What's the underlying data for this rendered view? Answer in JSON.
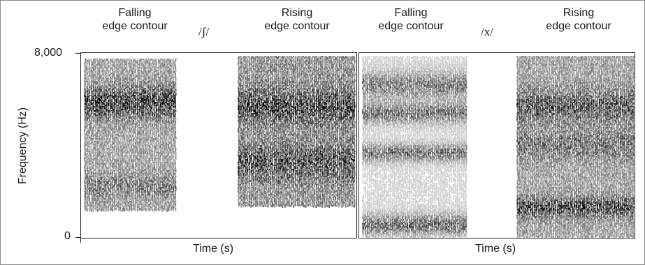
{
  "figure": {
    "y_axis_label": "Frequency (Hz)",
    "y_ticks": [
      "8,000",
      "0"
    ],
    "x_axis_label": "Time (s)",
    "panels": [
      {
        "phoneme": "/ʃ/",
        "left_label": "Falling\nedge contour",
        "right_label": "Rising\nedge contour"
      },
      {
        "phoneme": "/x/",
        "left_label": "Falling\nedge contour",
        "right_label": "Rising\nedge contour"
      }
    ]
  }
}
